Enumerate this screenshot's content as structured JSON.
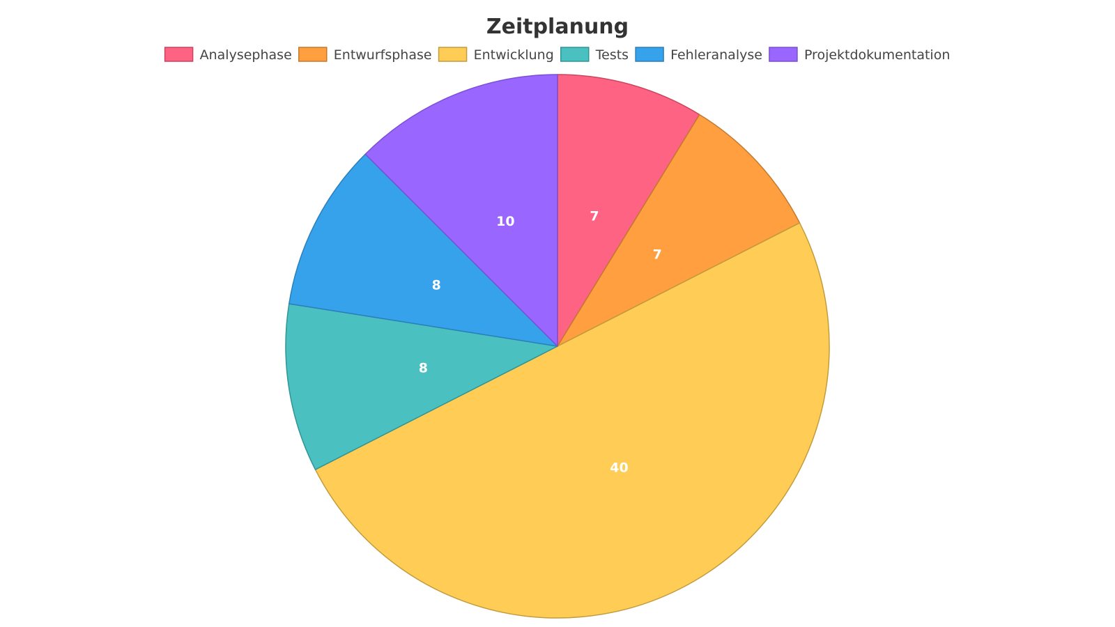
{
  "chart_data": {
    "type": "pie",
    "title": "Zeitplanung",
    "categories": [
      "Analysephase",
      "Entwurfsphase",
      "Entwicklung",
      "Tests",
      "Fehleranalyse",
      "Projektdokumentation"
    ],
    "values": [
      7,
      7,
      40,
      8,
      8,
      10
    ],
    "colors": [
      "#ff6384",
      "#ff9f40",
      "#ffcd56",
      "#4bc0c0",
      "#36a2eb",
      "#9966ff"
    ],
    "border_colors": [
      "#c9455f",
      "#c27a2f",
      "#c29b3d",
      "#2f9595",
      "#2a7fbb",
      "#7a4fd6"
    ],
    "legend_position": "top",
    "start_angle": "top, clockwise",
    "data_labels": true
  }
}
